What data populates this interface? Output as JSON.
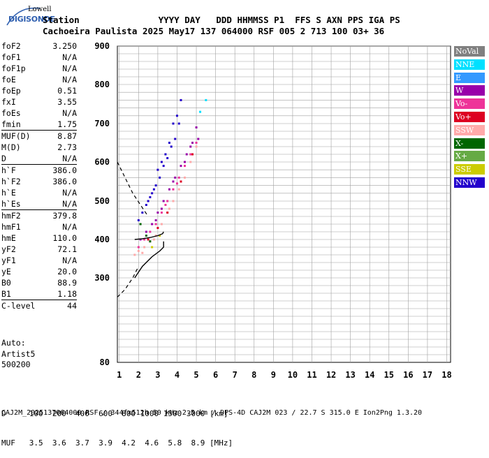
{
  "logo": {
    "top": "Lowell",
    "main": "DIGISONDE"
  },
  "header": {
    "row1": "Station               YYYY DAY   DDD HHMMSS P1  FFS S AXN PPS IGA PS",
    "row2": "Cachoeira Paulista 2025 May17 137 064000 RSF 005 2 713 100 03+ 36"
  },
  "params": [
    {
      "label": "foF2",
      "value": "3.250"
    },
    {
      "label": "foF1",
      "value": "N/A"
    },
    {
      "label": "foF1p",
      "value": "N/A"
    },
    {
      "label": "foE",
      "value": "N/A"
    },
    {
      "label": "foEp",
      "value": "0.51"
    },
    {
      "label": "fxI",
      "value": "3.55"
    },
    {
      "label": "foEs",
      "value": "N/A"
    },
    {
      "label": "fmin",
      "value": "1.75"
    },
    {
      "sep": true
    },
    {
      "label": "MUF(D)",
      "value": "8.87"
    },
    {
      "label": "M(D)",
      "value": "2.73"
    },
    {
      "label": "D",
      "value": "N/A"
    },
    {
      "sep": true
    },
    {
      "label": "h`F",
      "value": "386.0"
    },
    {
      "label": "h`F2",
      "value": "386.0"
    },
    {
      "label": "h`E",
      "value": "N/A"
    },
    {
      "label": "h`Es",
      "value": "N/A"
    },
    {
      "sep": true
    },
    {
      "label": "hmF2",
      "value": "379.8"
    },
    {
      "label": "hmF1",
      "value": "N/A"
    },
    {
      "label": "hmE",
      "value": "110.0"
    },
    {
      "label": "yF2",
      "value": "72.1"
    },
    {
      "label": "yF1",
      "value": "N/A"
    },
    {
      "label": "yE",
      "value": "20.0"
    },
    {
      "label": "B0",
      "value": "88.9"
    },
    {
      "label": "B1",
      "value": "1.18"
    },
    {
      "sep": true
    },
    {
      "label": "C-level",
      "value": "44"
    }
  ],
  "auto": [
    "Auto:",
    "Artist5",
    "500200"
  ],
  "legend": [
    {
      "label": "NoVal",
      "color": "#808080"
    },
    {
      "label": "NNE",
      "color": "#00e0ff"
    },
    {
      "label": "E",
      "color": "#3399ff"
    },
    {
      "label": "W",
      "color": "#9900aa"
    },
    {
      "label": "Vo-",
      "color": "#ee3399"
    },
    {
      "label": "Vo+",
      "color": "#dd0022"
    },
    {
      "label": "SSW",
      "color": "#ffaaaa"
    },
    {
      "label": "X-",
      "color": "#006600"
    },
    {
      "label": "X+",
      "color": "#66aa44"
    },
    {
      "label": "SSE",
      "color": "#cccc00"
    },
    {
      "label": "NNW",
      "color": "#2200cc"
    }
  ],
  "bottom": {
    "d_row": "D     100  200  400  600  800 1000 1500 3000 [km]",
    "muf_row": "MUF   3.5  3.6  3.7  3.9  4.2  4.6  5.8  8.9 [MHz]"
  },
  "footer": "CAJ2M_2025137064000.RSF / 344fx512h 50 kHz 2.5 km / DPS-4D CAJ2M 023 / 22.7 S 315.0 E Ion2Png 1.3.20",
  "chart_data": {
    "type": "scatter",
    "title": "",
    "xlabel": "",
    "ylabel": "",
    "xlim": [
      0.9,
      18.2
    ],
    "ylim": [
      80,
      900
    ],
    "x_ticks": [
      1,
      2,
      3,
      4,
      5,
      6,
      7,
      8,
      9,
      10,
      11,
      12,
      13,
      14,
      15,
      16,
      17,
      18
    ],
    "y_ticks": [
      80,
      300,
      400,
      500,
      600,
      700,
      800,
      900
    ],
    "grid": true,
    "legend_position": "right",
    "series": [
      {
        "name": "NNW",
        "color": "#2200cc",
        "points": [
          [
            2.0,
            450
          ],
          [
            2.2,
            470
          ],
          [
            2.5,
            500
          ],
          [
            2.7,
            520
          ],
          [
            2.9,
            540
          ],
          [
            3.1,
            560
          ],
          [
            3.3,
            590
          ],
          [
            3.5,
            610
          ],
          [
            3.7,
            640
          ],
          [
            3.9,
            660
          ],
          [
            4.1,
            700
          ],
          [
            4.2,
            760
          ],
          [
            2.4,
            490
          ],
          [
            2.8,
            530
          ],
          [
            3.0,
            580
          ],
          [
            3.4,
            620
          ],
          [
            3.6,
            650
          ],
          [
            3.8,
            700
          ],
          [
            4.0,
            720
          ],
          [
            2.6,
            510
          ],
          [
            3.2,
            600
          ]
        ]
      },
      {
        "name": "W",
        "color": "#9900aa",
        "points": [
          [
            2.1,
            400
          ],
          [
            2.4,
            420
          ],
          [
            2.7,
            440
          ],
          [
            3.0,
            470
          ],
          [
            3.3,
            500
          ],
          [
            3.6,
            530
          ],
          [
            3.9,
            560
          ],
          [
            4.2,
            590
          ],
          [
            4.5,
            620
          ],
          [
            4.8,
            650
          ],
          [
            5.0,
            690
          ],
          [
            4.4,
            600
          ],
          [
            3.8,
            550
          ],
          [
            3.2,
            480
          ],
          [
            2.9,
            450
          ],
          [
            4.7,
            640
          ],
          [
            5.1,
            660
          ]
        ]
      },
      {
        "name": "Vo-",
        "color": "#ee3399",
        "points": [
          [
            2.0,
            380
          ],
          [
            2.3,
            400
          ],
          [
            2.6,
            420
          ],
          [
            2.9,
            440
          ],
          [
            3.2,
            470
          ],
          [
            3.5,
            500
          ],
          [
            3.8,
            530
          ],
          [
            4.1,
            560
          ],
          [
            4.4,
            590
          ],
          [
            4.7,
            620
          ],
          [
            5.0,
            650
          ],
          [
            4.0,
            545
          ],
          [
            3.4,
            490
          ]
        ]
      },
      {
        "name": "SSW",
        "color": "#ffaaaa",
        "points": [
          [
            1.8,
            360
          ],
          [
            2.0,
            370
          ],
          [
            2.3,
            380
          ],
          [
            2.6,
            395
          ],
          [
            2.9,
            410
          ],
          [
            3.2,
            440
          ],
          [
            3.5,
            470
          ],
          [
            3.8,
            500
          ],
          [
            4.1,
            530
          ],
          [
            4.4,
            560
          ],
          [
            4.7,
            600
          ],
          [
            5.0,
            640
          ],
          [
            2.2,
            365
          ],
          [
            2.8,
            400
          ],
          [
            3.6,
            480
          ]
        ]
      },
      {
        "name": "Vo+",
        "color": "#dd0022",
        "points": [
          [
            2.5,
            400
          ],
          [
            3.0,
            430
          ],
          [
            3.5,
            470
          ],
          [
            4.2,
            550
          ],
          [
            4.8,
            620
          ]
        ]
      },
      {
        "name": "X-",
        "color": "#006600",
        "points": [
          [
            2.1,
            440
          ],
          [
            2.4,
            410
          ],
          [
            2.6,
            395
          ]
        ]
      },
      {
        "name": "NNE",
        "color": "#00e0ff",
        "points": [
          [
            5.5,
            760
          ],
          [
            5.2,
            730
          ]
        ]
      },
      {
        "name": "SSE",
        "color": "#cccc00",
        "points": [
          [
            2.7,
            380
          ],
          [
            3.1,
            410
          ]
        ]
      }
    ],
    "profile_line": {
      "x": [
        1.8,
        2.2,
        2.6,
        3.0,
        3.25,
        3.3
      ],
      "y": [
        400,
        402,
        405,
        410,
        415,
        420
      ]
    },
    "profile_curve": {
      "x": [
        1.8,
        2.2,
        2.7,
        3.1,
        3.3,
        3.3
      ],
      "y": [
        300,
        330,
        355,
        370,
        380,
        395
      ]
    },
    "dashed_curve": {
      "x": [
        0.9,
        1.3,
        1.7,
        2.1,
        2.5
      ],
      "y": [
        600,
        560,
        520,
        490,
        460
      ]
    },
    "dashed_low": {
      "x": [
        0.9,
        1.3,
        1.7,
        2.0
      ],
      "y": [
        250,
        270,
        300,
        330
      ]
    }
  }
}
